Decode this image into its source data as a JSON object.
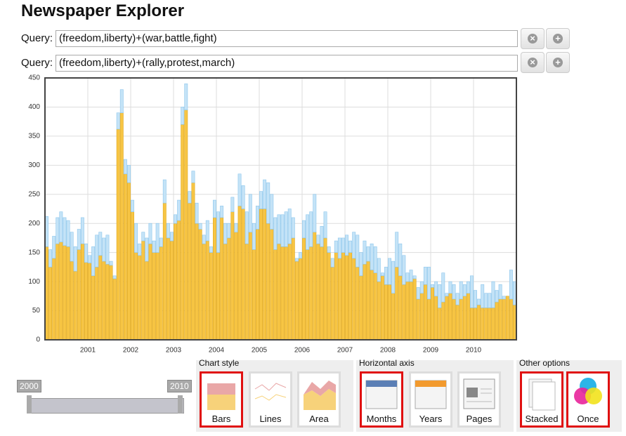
{
  "header": {
    "title": "Newspaper Explorer"
  },
  "queries": [
    {
      "label": "Query:",
      "text": "(freedom,liberty)+(war,battle,fight)"
    },
    {
      "label": "Query:",
      "text": "(freedom,liberty)+(rally,protest,march)"
    }
  ],
  "chart_data": {
    "type": "bar",
    "stacked": true,
    "grid": true,
    "ylim": [
      0,
      450
    ],
    "yticks": [
      0,
      50,
      100,
      150,
      200,
      250,
      300,
      350,
      400,
      450
    ],
    "categories": [
      null,
      null,
      null,
      null,
      null,
      null,
      null,
      null,
      null,
      null,
      null,
      null,
      "2001",
      null,
      null,
      null,
      null,
      null,
      null,
      null,
      null,
      null,
      null,
      null,
      "2002",
      null,
      null,
      null,
      null,
      null,
      null,
      null,
      null,
      null,
      null,
      null,
      "2003",
      null,
      null,
      null,
      null,
      null,
      null,
      null,
      null,
      null,
      null,
      null,
      "2004",
      null,
      null,
      null,
      null,
      null,
      null,
      null,
      null,
      null,
      null,
      null,
      "2005",
      null,
      null,
      null,
      null,
      null,
      null,
      null,
      null,
      null,
      null,
      null,
      "2006",
      null,
      null,
      null,
      null,
      null,
      null,
      null,
      null,
      null,
      null,
      null,
      "2007",
      null,
      null,
      null,
      null,
      null,
      null,
      null,
      null,
      null,
      null,
      null,
      "2008",
      null,
      null,
      null,
      null,
      null,
      null,
      null,
      null,
      null,
      null,
      null,
      "2009",
      null,
      null,
      null,
      null,
      null,
      null,
      null,
      null,
      null,
      null,
      null,
      "2010",
      null,
      null,
      null,
      null,
      null,
      null,
      null,
      null,
      null,
      null,
      null
    ],
    "series": [
      {
        "color": "#f7c544",
        "values": [
          160,
          125,
          140,
          165,
          168,
          162,
          160,
          135,
          118,
          155,
          165,
          133,
          132,
          110,
          125,
          145,
          135,
          130,
          128,
          105,
          362,
          390,
          285,
          270,
          220,
          150,
          145,
          170,
          135,
          165,
          150,
          150,
          160,
          235,
          175,
          170,
          200,
          205,
          370,
          395,
          235,
          270,
          200,
          190,
          165,
          170,
          150,
          210,
          150,
          210,
          165,
          175,
          220,
          185,
          230,
          225,
          165,
          185,
          155,
          190,
          225,
          225,
          200,
          190,
          155,
          165,
          160,
          160,
          165,
          175,
          135,
          140,
          175,
          155,
          160,
          185,
          165,
          160,
          175,
          150,
          125,
          150,
          140,
          150,
          145,
          150,
          140,
          125,
          110,
          130,
          135,
          120,
          115,
          100,
          110,
          95,
          95,
          80,
          125,
          110,
          95,
          100,
          100,
          105,
          70,
          80,
          95,
          70,
          90,
          75,
          55,
          65,
          75,
          80,
          70,
          60,
          70,
          75,
          80,
          55,
          55,
          60,
          55,
          55,
          55,
          55,
          65,
          70,
          70,
          75,
          70,
          60
        ]
      },
      {
        "color": "#c4e3f7",
        "values": [
          52,
          30,
          38,
          45,
          52,
          48,
          45,
          50,
          42,
          35,
          45,
          32,
          13,
          50,
          55,
          40,
          40,
          50,
          7,
          5,
          28,
          40,
          25,
          30,
          20,
          50,
          20,
          15,
          40,
          35,
          20,
          50,
          15,
          40,
          25,
          15,
          15,
          35,
          30,
          45,
          20,
          20,
          35,
          10,
          15,
          35,
          10,
          30,
          70,
          20,
          35,
          25,
          25,
          15,
          55,
          40,
          55,
          65,
          45,
          40,
          30,
          50,
          70,
          60,
          55,
          50,
          55,
          60,
          60,
          35,
          5,
          10,
          30,
          60,
          60,
          65,
          15,
          35,
          45,
          10,
          15,
          20,
          35,
          25,
          35,
          20,
          45,
          55,
          40,
          40,
          25,
          45,
          45,
          40,
          5,
          30,
          45,
          55,
          60,
          55,
          50,
          15,
          20,
          5,
          20,
          20,
          30,
          55,
          5,
          25,
          40,
          50,
          5,
          20,
          25,
          20,
          30,
          20,
          20,
          55,
          30,
          10,
          40,
          25,
          25,
          45,
          20,
          25,
          5,
          0,
          50,
          40
        ]
      }
    ]
  },
  "slider": {
    "start": "2000",
    "end": "2010"
  },
  "controls": [
    {
      "title": "Chart style",
      "items": [
        {
          "label": "Bars",
          "selected": true
        },
        {
          "label": "Lines",
          "selected": false
        },
        {
          "label": "Area",
          "selected": false
        }
      ]
    },
    {
      "title": "Horizontal axis",
      "items": [
        {
          "label": "Months",
          "selected": true
        },
        {
          "label": "Years",
          "selected": false
        },
        {
          "label": "Pages",
          "selected": false
        }
      ]
    },
    {
      "title": "Other options",
      "items": [
        {
          "label": "Stacked",
          "selected": true
        },
        {
          "label": "Once",
          "selected": true
        }
      ]
    }
  ]
}
